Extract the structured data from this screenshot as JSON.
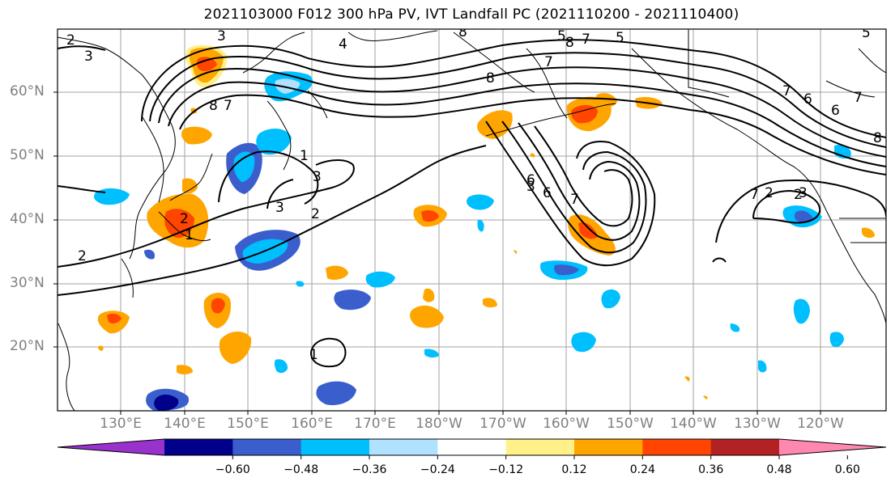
{
  "title": "2021103000 F012 300 hPa PV, IVT Landfall PC (2021110200 - 2021110400)",
  "map": {
    "latitude_labels": [
      "60°N",
      "50°N",
      "40°N",
      "30°N",
      "20°N"
    ],
    "longitude_labels": [
      "130°E",
      "140°E",
      "150°E",
      "160°E",
      "170°E",
      "180°W",
      "170°W",
      "160°W",
      "150°W",
      "140°W",
      "130°W",
      "120°W"
    ],
    "contour_labels": [
      "3",
      "3",
      "2",
      "4",
      "8",
      "8",
      "8",
      "7",
      "8",
      "7",
      "5",
      "5",
      "6",
      "7",
      "8",
      "7",
      "7",
      "2",
      "2",
      "3",
      "3",
      "1",
      "3",
      "6",
      "7",
      "2",
      "2",
      "1",
      "1",
      "2",
      "3",
      "7",
      "5",
      "6",
      "6"
    ]
  },
  "colorbar": {
    "tick_labels": [
      "−0.60",
      "−0.48",
      "−0.36",
      "−0.24",
      "−0.12",
      "0.12",
      "0.24",
      "0.36",
      "0.48",
      "0.60"
    ],
    "colors": [
      "#9932cc",
      "#00008b",
      "#3a5fcd",
      "#00bfff",
      "#b0e2ff",
      "#ffffff",
      "#fff08a",
      "#ffa500",
      "#ff4500",
      "#b22222",
      "#ff88b0"
    ]
  }
}
